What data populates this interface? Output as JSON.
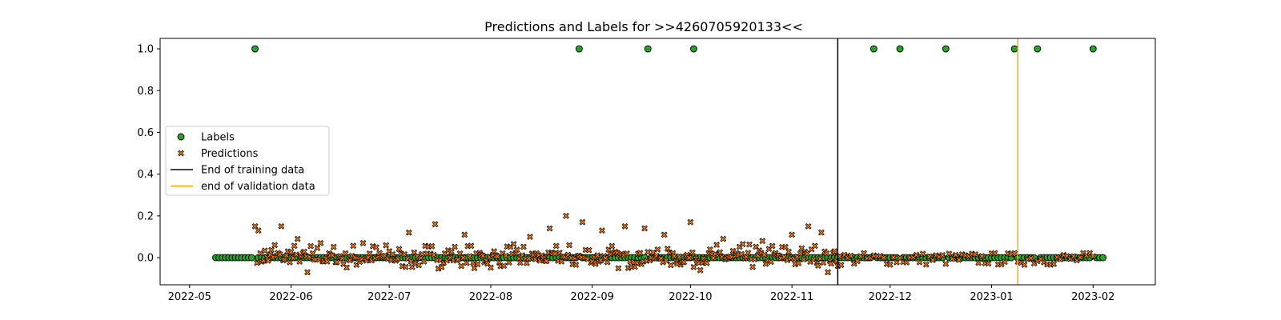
{
  "chart_data": {
    "type": "scatter",
    "title": "Predictions and Labels for >>4260705920133<<",
    "xlabel": "",
    "ylabel": "",
    "x_range": [
      "2022-04-22",
      "2023-02-20"
    ],
    "ylim": [
      -0.13,
      1.05
    ],
    "x_ticks": [
      "2022-05-01",
      "2022-06-01",
      "2022-07-01",
      "2022-08-01",
      "2022-09-01",
      "2022-10-01",
      "2022-11-01",
      "2022-12-01",
      "2023-01-01",
      "2023-02-01"
    ],
    "x_tick_labels": [
      "2022-05",
      "2022-06",
      "2022-07",
      "2022-08",
      "2022-09",
      "2022-10",
      "2022-11",
      "2022-12",
      "2023-01",
      "2023-02"
    ],
    "y_ticks": [
      0.0,
      0.2,
      0.4,
      0.6,
      0.8,
      1.0
    ],
    "y_tick_labels": [
      "0.0",
      "0.2",
      "0.4",
      "0.6",
      "0.8",
      "1.0"
    ],
    "grid": false,
    "legend_position": "center-left",
    "legend": {
      "labels": "Labels",
      "predictions": "Predictions",
      "end_training": "End of training data",
      "end_validation": "end of validation data"
    },
    "labels_series": {
      "date_start": "2022-05-09",
      "date_end": "2023-02-04",
      "positive_dates": [
        "2022-05-21",
        "2022-08-28",
        "2022-09-18",
        "2022-10-02",
        "2022-11-26",
        "2022-12-04",
        "2022-12-18",
        "2023-01-08",
        "2023-01-15",
        "2023-02-01"
      ],
      "positive_value": 1.0,
      "negative_value": 0.0
    },
    "predictions_series": {
      "date_start": "2022-05-21",
      "date_end": "2023-02-01",
      "notable_points": [
        {
          "x": "2022-05-21",
          "y": 0.15
        },
        {
          "x": "2022-05-22",
          "y": 0.13
        },
        {
          "x": "2022-05-27",
          "y": 0.06
        },
        {
          "x": "2022-05-29",
          "y": 0.15
        },
        {
          "x": "2022-06-03",
          "y": 0.09
        },
        {
          "x": "2022-06-10",
          "y": 0.07
        },
        {
          "x": "2022-06-23",
          "y": 0.07
        },
        {
          "x": "2022-07-07",
          "y": 0.12
        },
        {
          "x": "2022-07-15",
          "y": 0.16
        },
        {
          "x": "2022-07-24",
          "y": 0.11
        },
        {
          "x": "2022-08-13",
          "y": 0.1
        },
        {
          "x": "2022-08-19",
          "y": 0.14
        },
        {
          "x": "2022-08-24",
          "y": 0.2
        },
        {
          "x": "2022-08-29",
          "y": 0.17
        },
        {
          "x": "2022-09-04",
          "y": 0.13
        },
        {
          "x": "2022-09-11",
          "y": 0.15
        },
        {
          "x": "2022-09-17",
          "y": 0.14
        },
        {
          "x": "2022-09-23",
          "y": 0.11
        },
        {
          "x": "2022-10-01",
          "y": 0.17
        },
        {
          "x": "2022-10-11",
          "y": 0.09
        },
        {
          "x": "2022-10-23",
          "y": 0.08
        },
        {
          "x": "2022-11-01",
          "y": 0.11
        },
        {
          "x": "2022-11-06",
          "y": 0.15
        },
        {
          "x": "2022-11-10",
          "y": 0.12
        },
        {
          "x": "2022-11-07",
          "y": 0.04
        },
        {
          "x": "2022-11-12",
          "y": -0.07
        },
        {
          "x": "2022-06-06",
          "y": -0.07
        },
        {
          "x": "2022-07-27",
          "y": -0.05
        },
        {
          "x": "2022-10-04",
          "y": -0.06
        }
      ]
    },
    "vertical_lines": [
      {
        "name": "End of training data",
        "x": "2022-11-15",
        "color": "#000000"
      },
      {
        "name": "end of validation data",
        "x": "2023-01-09",
        "color": "#ffa500"
      }
    ],
    "colors": {
      "labels_fill": "#2ca02c",
      "predictions_fill": "#ff7f0e",
      "marker_edge": "#000000"
    }
  }
}
